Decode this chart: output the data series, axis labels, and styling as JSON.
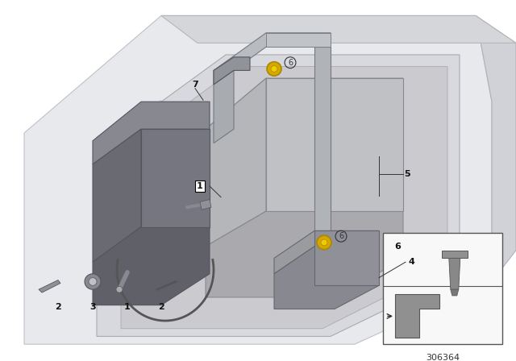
{
  "bg_color": "#ffffff",
  "diagram_number": "306364",
  "yellow_color": "#d4a800",
  "floor_color": "#e8e9ec",
  "floor_edge": "#c0c0c8",
  "recess_color": "#d8d9de",
  "inner_floor_color": "#cfd0d6",
  "battery_top": "#c8cacd",
  "battery_side": "#b8babe",
  "battery_front": "#a8aaae",
  "holder_top": "#7a7c80",
  "holder_side": "#5a5c60",
  "holder_front": "#6a6c70",
  "strap_color": "#b8bcc0",
  "clamp_color": "#8a8c90",
  "label_color": "#111111",
  "line_color": "#555555",
  "inset_bg": "#f8f8f8",
  "screw_color": "#909090"
}
